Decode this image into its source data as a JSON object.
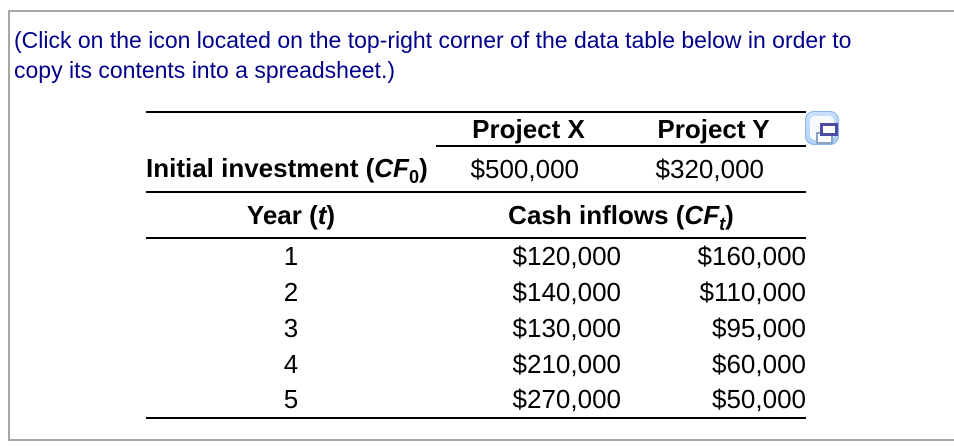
{
  "instruction": {
    "line1": "(Click on the icon located on the top-right corner of the data table below in order to",
    "line2": "copy its contents into a spreadsheet.)"
  },
  "colors": {
    "instruction_text": "#00008b",
    "panel_border": "#a6a6a6",
    "table_rule": "#000000",
    "icon_button_blue": "#a9ccf3",
    "icon_glyph_indigo": "#4c4ca2"
  },
  "icons": {
    "copy_table": "copy-table-icon"
  },
  "table": {
    "columns": {
      "project_x": "Project X",
      "project_y": "Project Y"
    },
    "initial_investment": {
      "label_text": "Initial investment (",
      "label_var": "CF",
      "label_sub": "0",
      "label_close": ")",
      "project_x": "$500,000",
      "project_y": "$320,000"
    },
    "year_header": {
      "label_text": "Year (",
      "label_var": "t",
      "label_close": ")"
    },
    "cash_header": {
      "label_text": "Cash inflows (",
      "label_var": "CF",
      "label_sub": "t",
      "label_close": ")"
    },
    "rows": [
      {
        "year": "1",
        "project_x": "$120,000",
        "project_y": "$160,000"
      },
      {
        "year": "2",
        "project_x": "$140,000",
        "project_y": "$110,000"
      },
      {
        "year": "3",
        "project_x": "$130,000",
        "project_y": "$95,000"
      },
      {
        "year": "4",
        "project_x": "$210,000",
        "project_y": "$60,000"
      },
      {
        "year": "5",
        "project_x": "$270,000",
        "project_y": "$50,000"
      }
    ]
  }
}
